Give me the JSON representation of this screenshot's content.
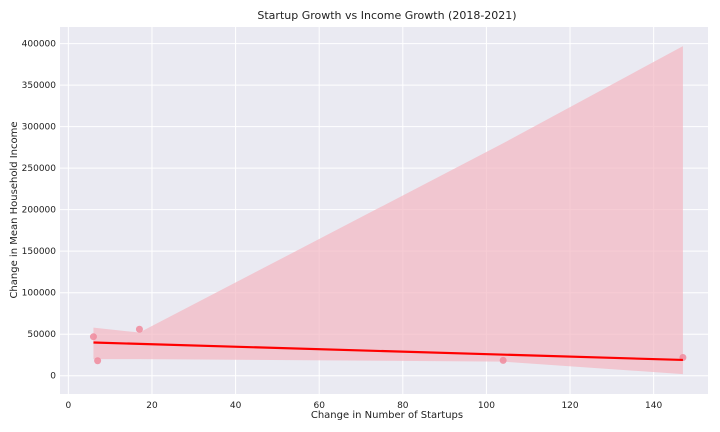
{
  "chart_data": {
    "type": "scatter",
    "title": "Startup Growth vs Income Growth (2018-2021)",
    "xlabel": "Change in Number of Startups",
    "ylabel": "Change in Mean Household Income",
    "xlim": [
      -2,
      153
    ],
    "ylim": [
      -22000,
      420000
    ],
    "x_ticks": [
      0,
      20,
      40,
      60,
      80,
      100,
      120,
      140
    ],
    "y_ticks": [
      0,
      50000,
      100000,
      150000,
      200000,
      250000,
      300000,
      350000,
      400000
    ],
    "grid": true,
    "points": [
      {
        "x": 6,
        "y": 47000
      },
      {
        "x": 7,
        "y": 18000
      },
      {
        "x": 17,
        "y": 56000
      },
      {
        "x": 104,
        "y": 18500
      },
      {
        "x": 147,
        "y": 22000
      }
    ],
    "regression_line": {
      "x": [
        6,
        147
      ],
      "y": [
        40000,
        19000
      ]
    },
    "confidence_band": {
      "x": [
        6,
        17,
        104,
        147
      ],
      "upper": [
        58000,
        52000,
        280000,
        397000
      ],
      "lower": [
        20000,
        20000,
        17000,
        2000
      ]
    },
    "colors": {
      "background": "#eaeaf2",
      "grid": "#ffffff",
      "point": "#f08a9c",
      "line": "#ff0000",
      "band": "#f4b6c2"
    }
  }
}
